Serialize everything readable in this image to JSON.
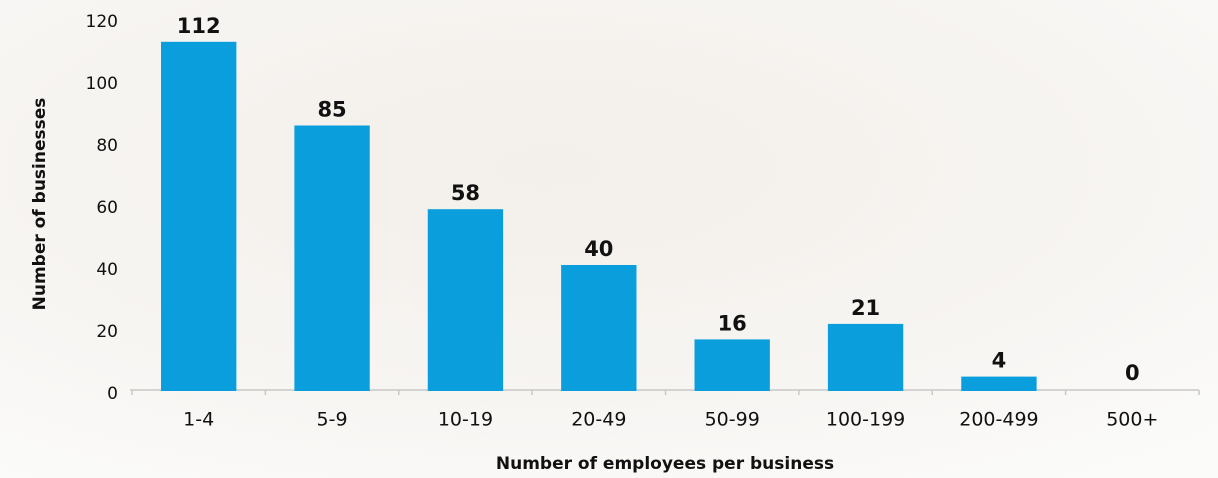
{
  "chart_data": {
    "type": "bar",
    "x_label": "Number of employees per business",
    "y_label": "Number of businesses",
    "categories": [
      "1-4",
      "5-9",
      "10-19",
      "20-49",
      "50-99",
      "100-199",
      "200-499",
      "500+"
    ],
    "values": [
      112,
      85,
      58,
      40,
      16,
      21,
      4,
      0
    ],
    "color": "#0a9fdc",
    "ylim": [
      0,
      120
    ],
    "yticks": [
      0,
      20,
      40,
      60,
      80,
      100,
      120
    ],
    "grid": false
  }
}
